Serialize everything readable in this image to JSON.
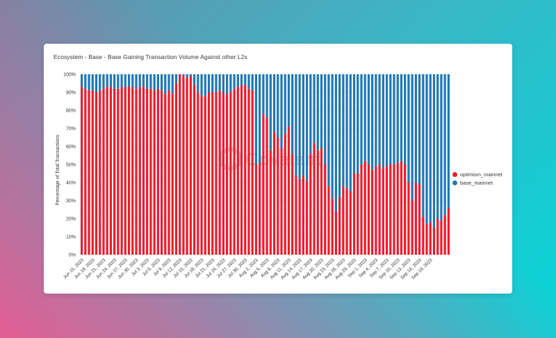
{
  "card": {
    "title": "Ecosystem - Base - Base Gaining Transaction Volume Against other L2s"
  },
  "watermark": {
    "text": "Covalent"
  },
  "colors": {
    "optimism": "#ee1b2c",
    "base": "#1f77b4"
  },
  "chart_data": {
    "type": "bar",
    "stacked": true,
    "ylabel": "Percentage of Total Transactions",
    "ylim": [
      0,
      100
    ],
    "yticks": [
      "0%",
      "10%",
      "20%",
      "30%",
      "40%",
      "50%",
      "60%",
      "70%",
      "80%",
      "90%",
      "100%"
    ],
    "xtick_labels": [
      "Jun 15, 2023",
      "Jun 18, 2023",
      "Jun 21, 2023",
      "Jun 24, 2023",
      "Jun 27, 2023",
      "Jun 30, 2023",
      "Jul 3, 2023",
      "Jul 6, 2023",
      "Jul 9, 2023",
      "Jul 12, 2023",
      "Jul 15, 2023",
      "Jul 18, 2023",
      "Jul 21, 2023",
      "Jul 24, 2023",
      "Jul 27, 2023",
      "Jul 30, 2023",
      "Aug 2, 2023",
      "Aug 5, 2023",
      "Aug 8, 2023",
      "Aug 11, 2023",
      "Aug 14, 2023",
      "Aug 17, 2023",
      "Aug 20, 2023",
      "Aug 23, 2023",
      "Aug 26, 2023",
      "Aug 29, 2023",
      "Sep 1, 2023",
      "Sep 4, 2023",
      "Sep 7, 2023",
      "Sep 10, 2023",
      "Sep 13, 2023",
      "Sep 16, 2023",
      "Sep 19, 2023"
    ],
    "legend_position": "right",
    "series": [
      {
        "name": "optimism_mainnet",
        "color": "#ee1b2c",
        "values": [
          93,
          92,
          91,
          91,
          90,
          91,
          92,
          93,
          93,
          92,
          92,
          93,
          93,
          93,
          93,
          92,
          93,
          93,
          92,
          92,
          91,
          92,
          91,
          89,
          91,
          89,
          95,
          100,
          99,
          98,
          99,
          94,
          90,
          88,
          88,
          90,
          90,
          90,
          91,
          90,
          89,
          90,
          92,
          93,
          94,
          94,
          92,
          91,
          50,
          51,
          78,
          76,
          58,
          68,
          65,
          59,
          67,
          71,
          56,
          44,
          42,
          44,
          41,
          56,
          62,
          58,
          59,
          50,
          38,
          31,
          24,
          32,
          38,
          37,
          35,
          45,
          45,
          50,
          52,
          50,
          47,
          49,
          50,
          48,
          49,
          50,
          50,
          51,
          52,
          50,
          40,
          30,
          40,
          39,
          21,
          17,
          18,
          15,
          20,
          19,
          22,
          26
        ]
      },
      {
        "name": "base_mainnet",
        "color": "#1f77b4",
        "values": [
          7,
          8,
          9,
          9,
          10,
          9,
          8,
          7,
          7,
          8,
          8,
          7,
          7,
          7,
          7,
          8,
          7,
          7,
          8,
          8,
          9,
          8,
          9,
          11,
          9,
          11,
          5,
          0,
          1,
          2,
          1,
          6,
          10,
          12,
          12,
          10,
          10,
          10,
          9,
          10,
          11,
          10,
          8,
          7,
          6,
          6,
          8,
          9,
          50,
          49,
          22,
          24,
          42,
          32,
          35,
          41,
          33,
          29,
          44,
          56,
          58,
          56,
          59,
          44,
          38,
          42,
          41,
          50,
          62,
          69,
          76,
          68,
          62,
          63,
          65,
          55,
          55,
          50,
          48,
          50,
          53,
          51,
          50,
          52,
          51,
          50,
          50,
          49,
          48,
          50,
          60,
          70,
          60,
          61,
          79,
          83,
          82,
          85,
          80,
          81,
          78,
          74
        ]
      }
    ]
  }
}
